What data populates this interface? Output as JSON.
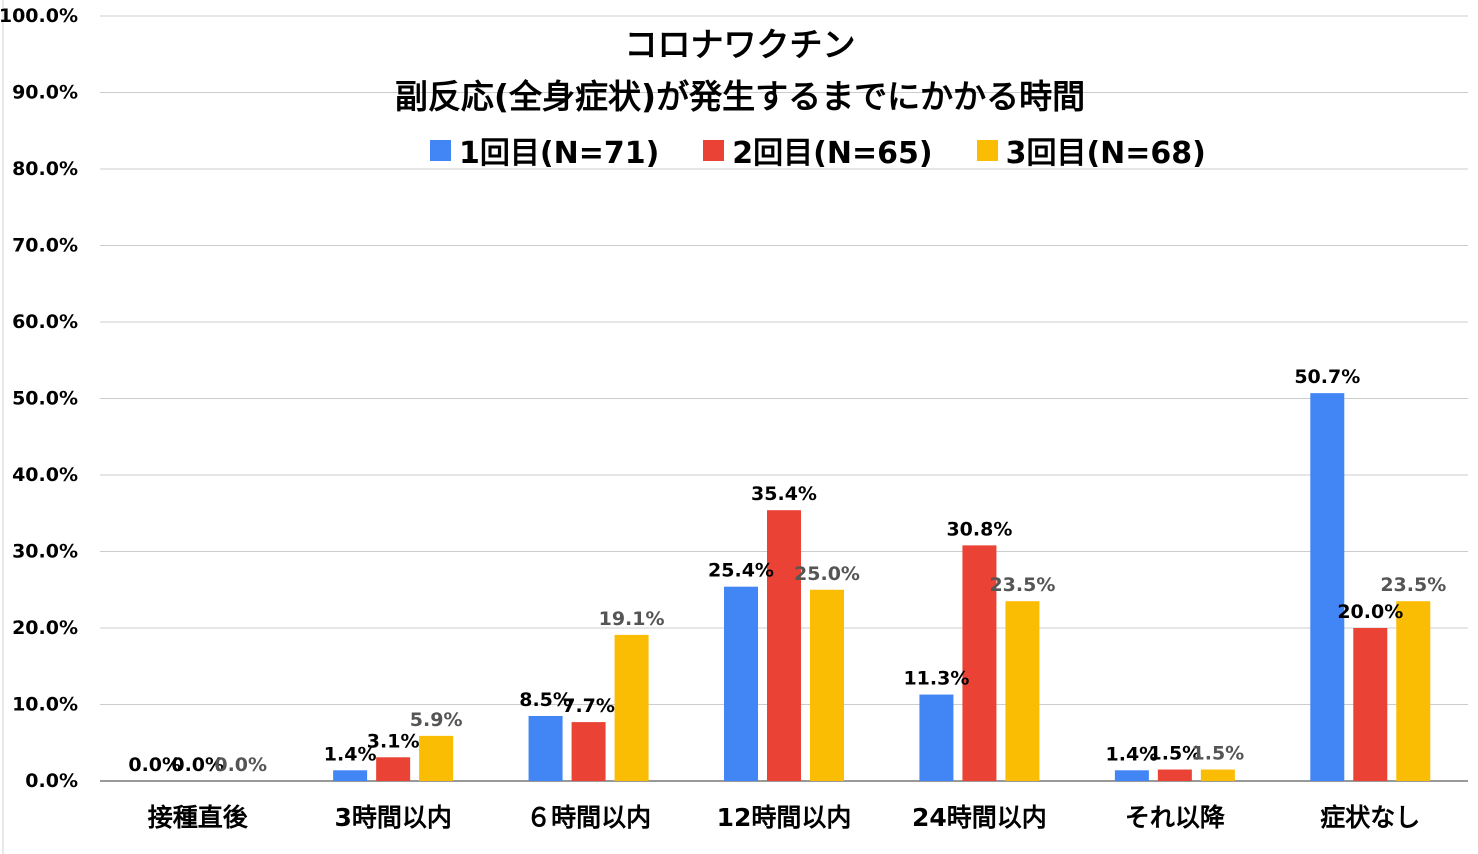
{
  "chart_data": {
    "type": "bar",
    "title": "コロナワクチン",
    "subtitle": "副反応(全身症状)が発生するまでにかかる時間",
    "categories": [
      "接種直後",
      "3時間以内",
      "６時間以内",
      "12時間以内",
      "24時間以内",
      "それ以降",
      "症状なし"
    ],
    "series": [
      {
        "name": "1回目(N=71)",
        "color": "#4285f4",
        "values": [
          0.0,
          1.4,
          8.5,
          25.4,
          11.3,
          1.4,
          50.7
        ]
      },
      {
        "name": "2回目(N=65)",
        "color": "#ea4335",
        "values": [
          0.0,
          3.1,
          7.7,
          35.4,
          30.8,
          1.5,
          20.0
        ]
      },
      {
        "name": "3回目(N=68)",
        "color": "#fbbc04",
        "values": [
          0.0,
          5.9,
          19.1,
          25.0,
          23.5,
          1.5,
          23.5
        ]
      }
    ],
    "data_labels": [
      [
        "0.0%",
        "1.4%",
        "8.5%",
        "25.4%",
        "11.3%",
        "1.4%",
        "50.7%"
      ],
      [
        "0.0%",
        "3.1%",
        "7.7%",
        "35.4%",
        "30.8%",
        "1.5%",
        "20.0%"
      ],
      [
        "0.0%",
        "5.9%",
        "19.1%",
        "25.0%",
        "23.5%",
        "1.5%",
        "23.5%"
      ]
    ],
    "y_ticks": [
      "0.0%",
      "10.0%",
      "20.0%",
      "30.0%",
      "40.0%",
      "50.0%",
      "60.0%",
      "70.0%",
      "80.0%",
      "90.0%",
      "100.0%"
    ],
    "ylim": [
      0,
      100
    ],
    "grid": true,
    "legend_position": "top"
  }
}
